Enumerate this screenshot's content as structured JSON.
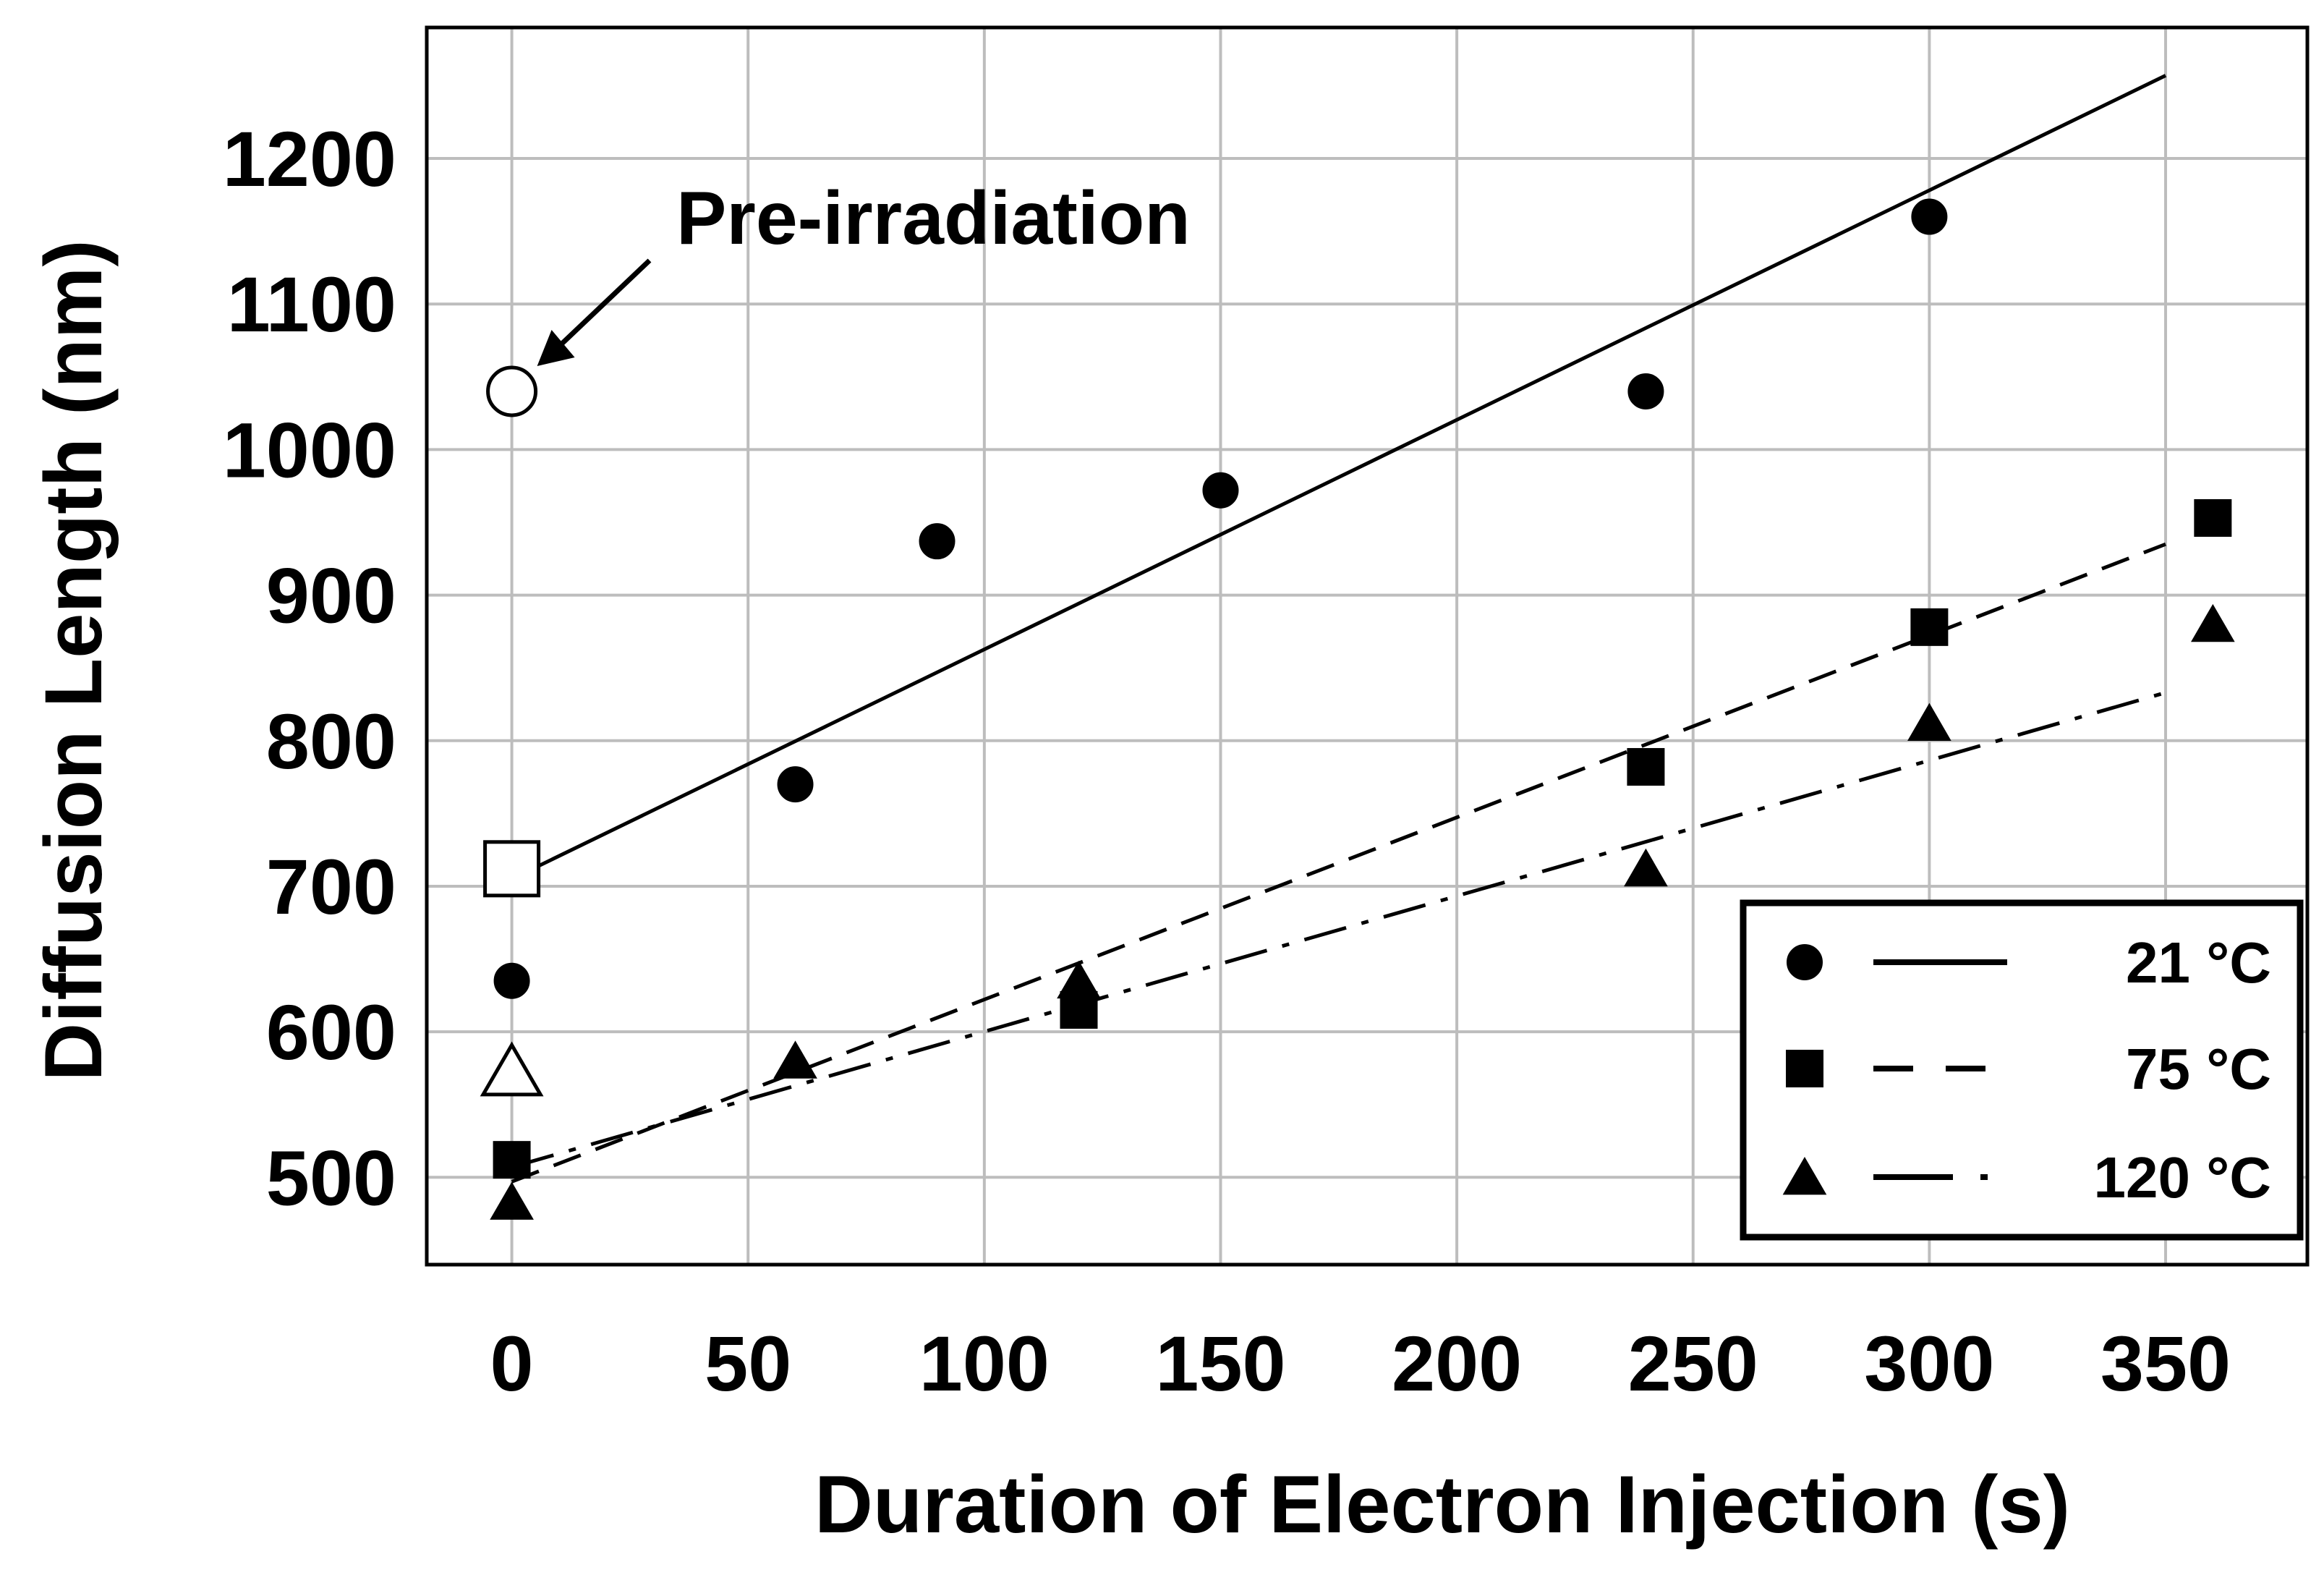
{
  "chart_data": {
    "type": "scatter",
    "title": "",
    "xlabel": "Duration of Electron Injection (s)",
    "ylabel": "Diffusion Length (nm)",
    "xlim": [
      -18,
      380
    ],
    "ylim": [
      440,
      1290
    ],
    "xticks": [
      0,
      50,
      100,
      150,
      200,
      250,
      300,
      350
    ],
    "yticks": [
      500,
      600,
      700,
      800,
      900,
      1000,
      1100,
      1200
    ],
    "grid": true,
    "legend_position": "bottom-right",
    "series": [
      {
        "name": "21 °C",
        "marker": "circle",
        "line_style": "solid",
        "points": [
          [
            0,
            635
          ],
          [
            60,
            770
          ],
          [
            90,
            937
          ],
          [
            150,
            972
          ],
          [
            240,
            1040
          ],
          [
            300,
            1160
          ]
        ],
        "fit": [
          [
            0,
            705
          ],
          [
            350,
            1257
          ]
        ]
      },
      {
        "name": "75 °C",
        "marker": "square",
        "line_style": "dashed",
        "points": [
          [
            0,
            512
          ],
          [
            120,
            615
          ],
          [
            240,
            782
          ],
          [
            300,
            878
          ],
          [
            360,
            953
          ]
        ],
        "fit": [
          [
            0,
            497
          ],
          [
            350,
            935
          ]
        ]
      },
      {
        "name": "120 °C",
        "marker": "triangle",
        "line_style": "dashdot",
        "points": [
          [
            0,
            483
          ],
          [
            60,
            580
          ],
          [
            120,
            635
          ],
          [
            240,
            712
          ],
          [
            300,
            812
          ],
          [
            360,
            880
          ]
        ],
        "fit": [
          [
            0,
            507
          ],
          [
            350,
            833
          ]
        ]
      }
    ],
    "open_markers": [
      {
        "shape": "circle",
        "x": 0,
        "y": 1040
      },
      {
        "shape": "square",
        "x": 0,
        "y": 712
      },
      {
        "shape": "triangle",
        "x": 0,
        "y": 573
      }
    ],
    "annotations": [
      {
        "text": "Pre-irradiation",
        "points_to": [
          0,
          1040
        ]
      }
    ]
  }
}
